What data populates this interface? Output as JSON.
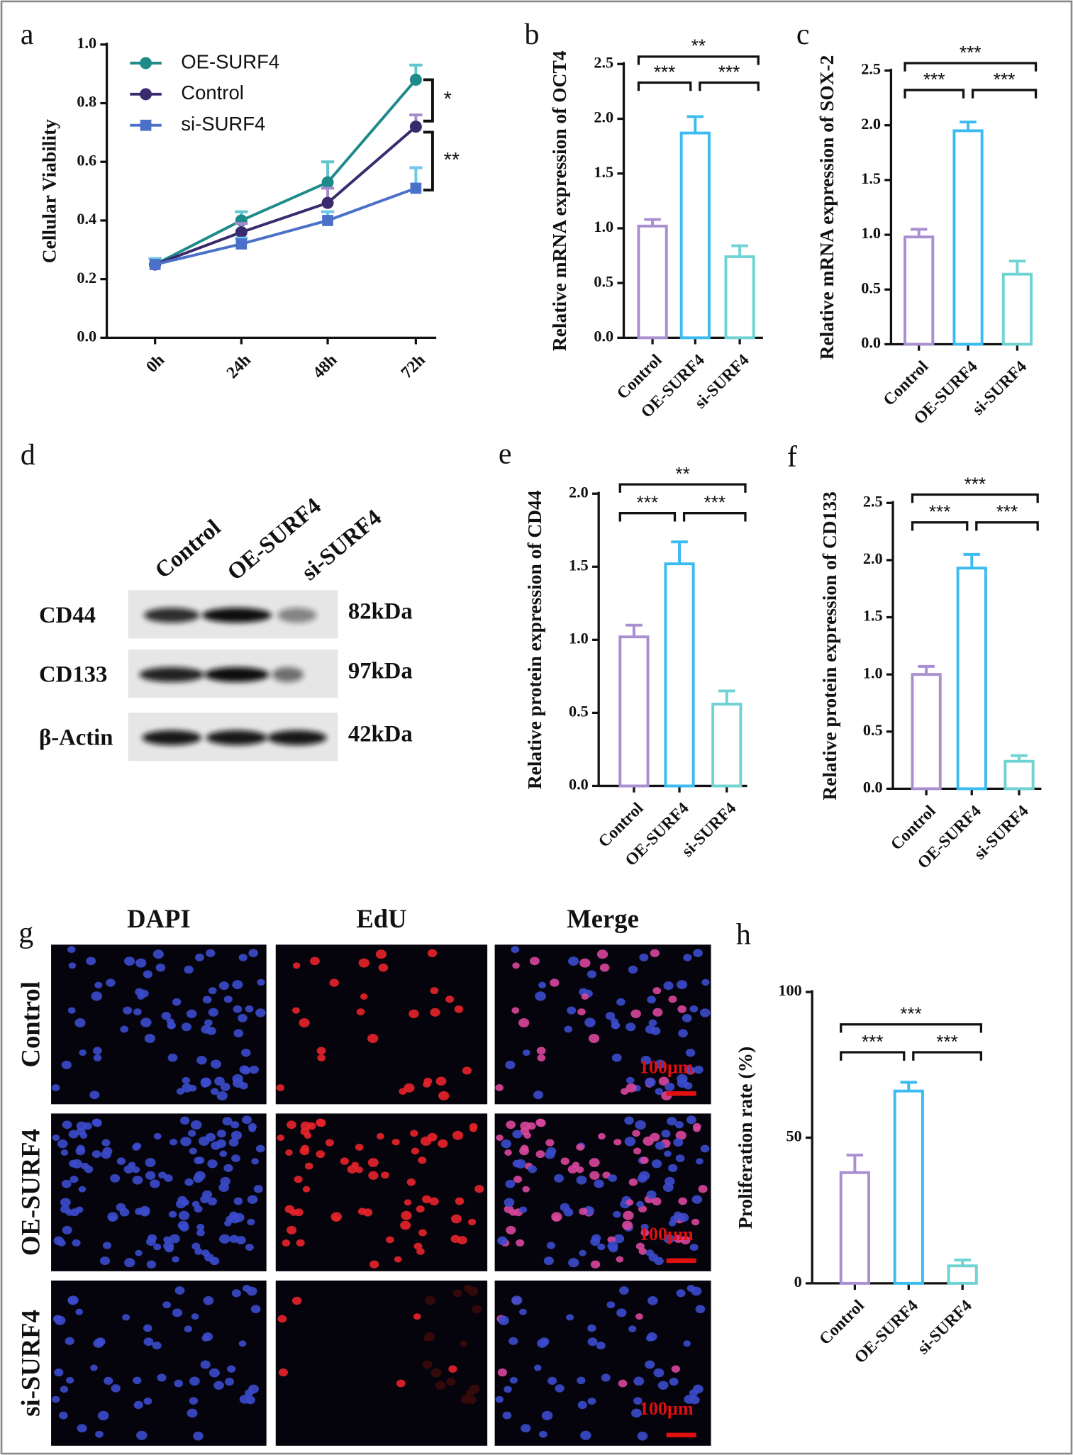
{
  "chart_data": [
    {
      "type": "line",
      "panel": "a",
      "y_label": "Cellular Viability",
      "categories": [
        "0h",
        "24h",
        "48h",
        "72h"
      ],
      "ylim": [
        0,
        1.0
      ],
      "yticks": [
        {
          "value": 0,
          "label": "0.0"
        },
        {
          "value": 0.2,
          "label": "0.2"
        },
        {
          "value": 0.4,
          "label": "0.4"
        },
        {
          "value": 0.6,
          "label": "0.6"
        },
        {
          "value": 0.8,
          "label": "0.8"
        },
        {
          "value": 1.0,
          "label": "1.0"
        }
      ],
      "legend": "upper left",
      "series": [
        {
          "name": "OE-SURF4",
          "color": "#1f8a8a",
          "error_color": "#5fc6cf",
          "marker": "circle",
          "values": [
            0.25,
            0.4,
            0.53,
            0.88
          ],
          "errors": [
            0.02,
            0.03,
            0.07,
            0.05
          ]
        },
        {
          "name": "Control",
          "color": "#3a2a6e",
          "error_color": "#a58bc9",
          "marker": "circle",
          "values": [
            0.25,
            0.36,
            0.46,
            0.72
          ],
          "errors": [
            0.02,
            0.03,
            0.05,
            0.04
          ]
        },
        {
          "name": "si-SURF4",
          "color": "#4a70c8",
          "error_color": "#6ec6ea",
          "marker": "square",
          "values": [
            0.25,
            0.32,
            0.4,
            0.51
          ],
          "errors": [
            0.02,
            0.02,
            0.03,
            0.07
          ]
        }
      ],
      "annotations": [
        {
          "text": "*",
          "series": [
            0,
            1
          ]
        },
        {
          "text": "**",
          "series": [
            1,
            2
          ]
        }
      ]
    },
    {
      "type": "bar",
      "panel": "b",
      "y_label": "Relative mRNA expression of OCT4",
      "categories": [
        "Control",
        "OE-SURF4",
        "si-SURF4"
      ],
      "colors": [
        "#a98fd0",
        "#3bbcf0",
        "#6fd3d3"
      ],
      "values": [
        1.02,
        1.87,
        0.74
      ],
      "errors": [
        0.06,
        0.15,
        0.1
      ],
      "ylim": [
        0,
        2.5
      ],
      "yticks": [
        {
          "value": 0,
          "label": "0.0"
        },
        {
          "value": 0.5,
          "label": "0.5"
        },
        {
          "value": 1.0,
          "label": "1.0"
        },
        {
          "value": 1.5,
          "label": "1.5"
        },
        {
          "value": 2.0,
          "label": "2.0"
        },
        {
          "value": 2.5,
          "label": "2.5"
        }
      ],
      "annotations": [
        {
          "text": "***",
          "pair": [
            0,
            1
          ]
        },
        {
          "text": "***",
          "pair": [
            1,
            2
          ]
        },
        {
          "text": "**",
          "pair": [
            0,
            2
          ]
        }
      ]
    },
    {
      "type": "bar",
      "panel": "c",
      "y_label": "Relative mRNA expression of SOX-2",
      "categories": [
        "Control",
        "OE-SURF4",
        "si-SURF4"
      ],
      "colors": [
        "#a98fd0",
        "#3bbcf0",
        "#6fd3d3"
      ],
      "values": [
        0.98,
        1.95,
        0.64
      ],
      "errors": [
        0.07,
        0.08,
        0.12
      ],
      "ylim": [
        0,
        2.5
      ],
      "yticks": [
        {
          "value": 0,
          "label": "0.0"
        },
        {
          "value": 0.5,
          "label": "0.5"
        },
        {
          "value": 1.0,
          "label": "1.0"
        },
        {
          "value": 1.5,
          "label": "1.5"
        },
        {
          "value": 2.0,
          "label": "2.0"
        },
        {
          "value": 2.5,
          "label": "2.5"
        }
      ],
      "annotations": [
        {
          "text": "***",
          "pair": [
            0,
            1
          ]
        },
        {
          "text": "***",
          "pair": [
            1,
            2
          ]
        },
        {
          "text": "***",
          "pair": [
            0,
            2
          ]
        }
      ]
    },
    {
      "type": "bar",
      "panel": "e",
      "y_label": "Relative protein expression of CD44",
      "categories": [
        "Control",
        "OE-SURF4",
        "si-SURF4"
      ],
      "colors": [
        "#a98fd0",
        "#3bbcf0",
        "#6fd3d3"
      ],
      "values": [
        1.02,
        1.52,
        0.56
      ],
      "errors": [
        0.08,
        0.15,
        0.09
      ],
      "ylim": [
        0,
        2.0
      ],
      "yticks": [
        {
          "value": 0,
          "label": "0.0"
        },
        {
          "value": 0.5,
          "label": "0.5"
        },
        {
          "value": 1.0,
          "label": "1.0"
        },
        {
          "value": 1.5,
          "label": "1.5"
        },
        {
          "value": 2.0,
          "label": "2.0"
        }
      ],
      "annotations": [
        {
          "text": "***",
          "pair": [
            0,
            1
          ]
        },
        {
          "text": "***",
          "pair": [
            1,
            2
          ]
        },
        {
          "text": "**",
          "pair": [
            0,
            2
          ]
        }
      ]
    },
    {
      "type": "bar",
      "panel": "f",
      "y_label": "Relative protein expression of CD133",
      "categories": [
        "Control",
        "OE-SURF4",
        "si-SURF4"
      ],
      "colors": [
        "#a98fd0",
        "#3bbcf0",
        "#6fd3d3"
      ],
      "values": [
        1.0,
        1.93,
        0.24
      ],
      "errors": [
        0.07,
        0.12,
        0.05
      ],
      "ylim": [
        0,
        2.5
      ],
      "yticks": [
        {
          "value": 0,
          "label": "0.0"
        },
        {
          "value": 0.5,
          "label": "0.5"
        },
        {
          "value": 1.0,
          "label": "1.0"
        },
        {
          "value": 1.5,
          "label": "1.5"
        },
        {
          "value": 2.0,
          "label": "2.0"
        },
        {
          "value": 2.5,
          "label": "2.5"
        }
      ],
      "annotations": [
        {
          "text": "***",
          "pair": [
            0,
            1
          ]
        },
        {
          "text": "***",
          "pair": [
            1,
            2
          ]
        },
        {
          "text": "***",
          "pair": [
            0,
            2
          ]
        }
      ]
    },
    {
      "type": "bar",
      "panel": "h",
      "y_label": "Proliferation rate (%)",
      "categories": [
        "Control",
        "OE-SURF4",
        "si-SURF4"
      ],
      "colors": [
        "#a98fd0",
        "#3bbcf0",
        "#6fd3d3"
      ],
      "values": [
        38,
        66,
        6
      ],
      "errors": [
        6,
        3,
        2
      ],
      "ylim": [
        0,
        100
      ],
      "yticks": [
        0,
        50,
        100
      ],
      "annotations": [
        {
          "text": "***",
          "pair": [
            0,
            1
          ]
        },
        {
          "text": "***",
          "pair": [
            1,
            2
          ]
        },
        {
          "text": "***",
          "pair": [
            0,
            2
          ]
        }
      ]
    }
  ],
  "western_blot": {
    "panel": "d",
    "lanes": [
      "Control",
      "OE-SURF4",
      "si-SURF4"
    ],
    "rows": [
      {
        "protein": "CD44",
        "size": "82kDa"
      },
      {
        "protein": "CD133",
        "size": "97kDa"
      },
      {
        "protein": "β-Actin",
        "size": "42kDa"
      }
    ]
  },
  "edu_assay": {
    "panel": "g",
    "stains": [
      "DAPI",
      "EdU",
      "Merge"
    ],
    "groups": [
      "Control",
      "OE-SURF4",
      "si-SURF4"
    ],
    "scale_bar": "100μm"
  }
}
